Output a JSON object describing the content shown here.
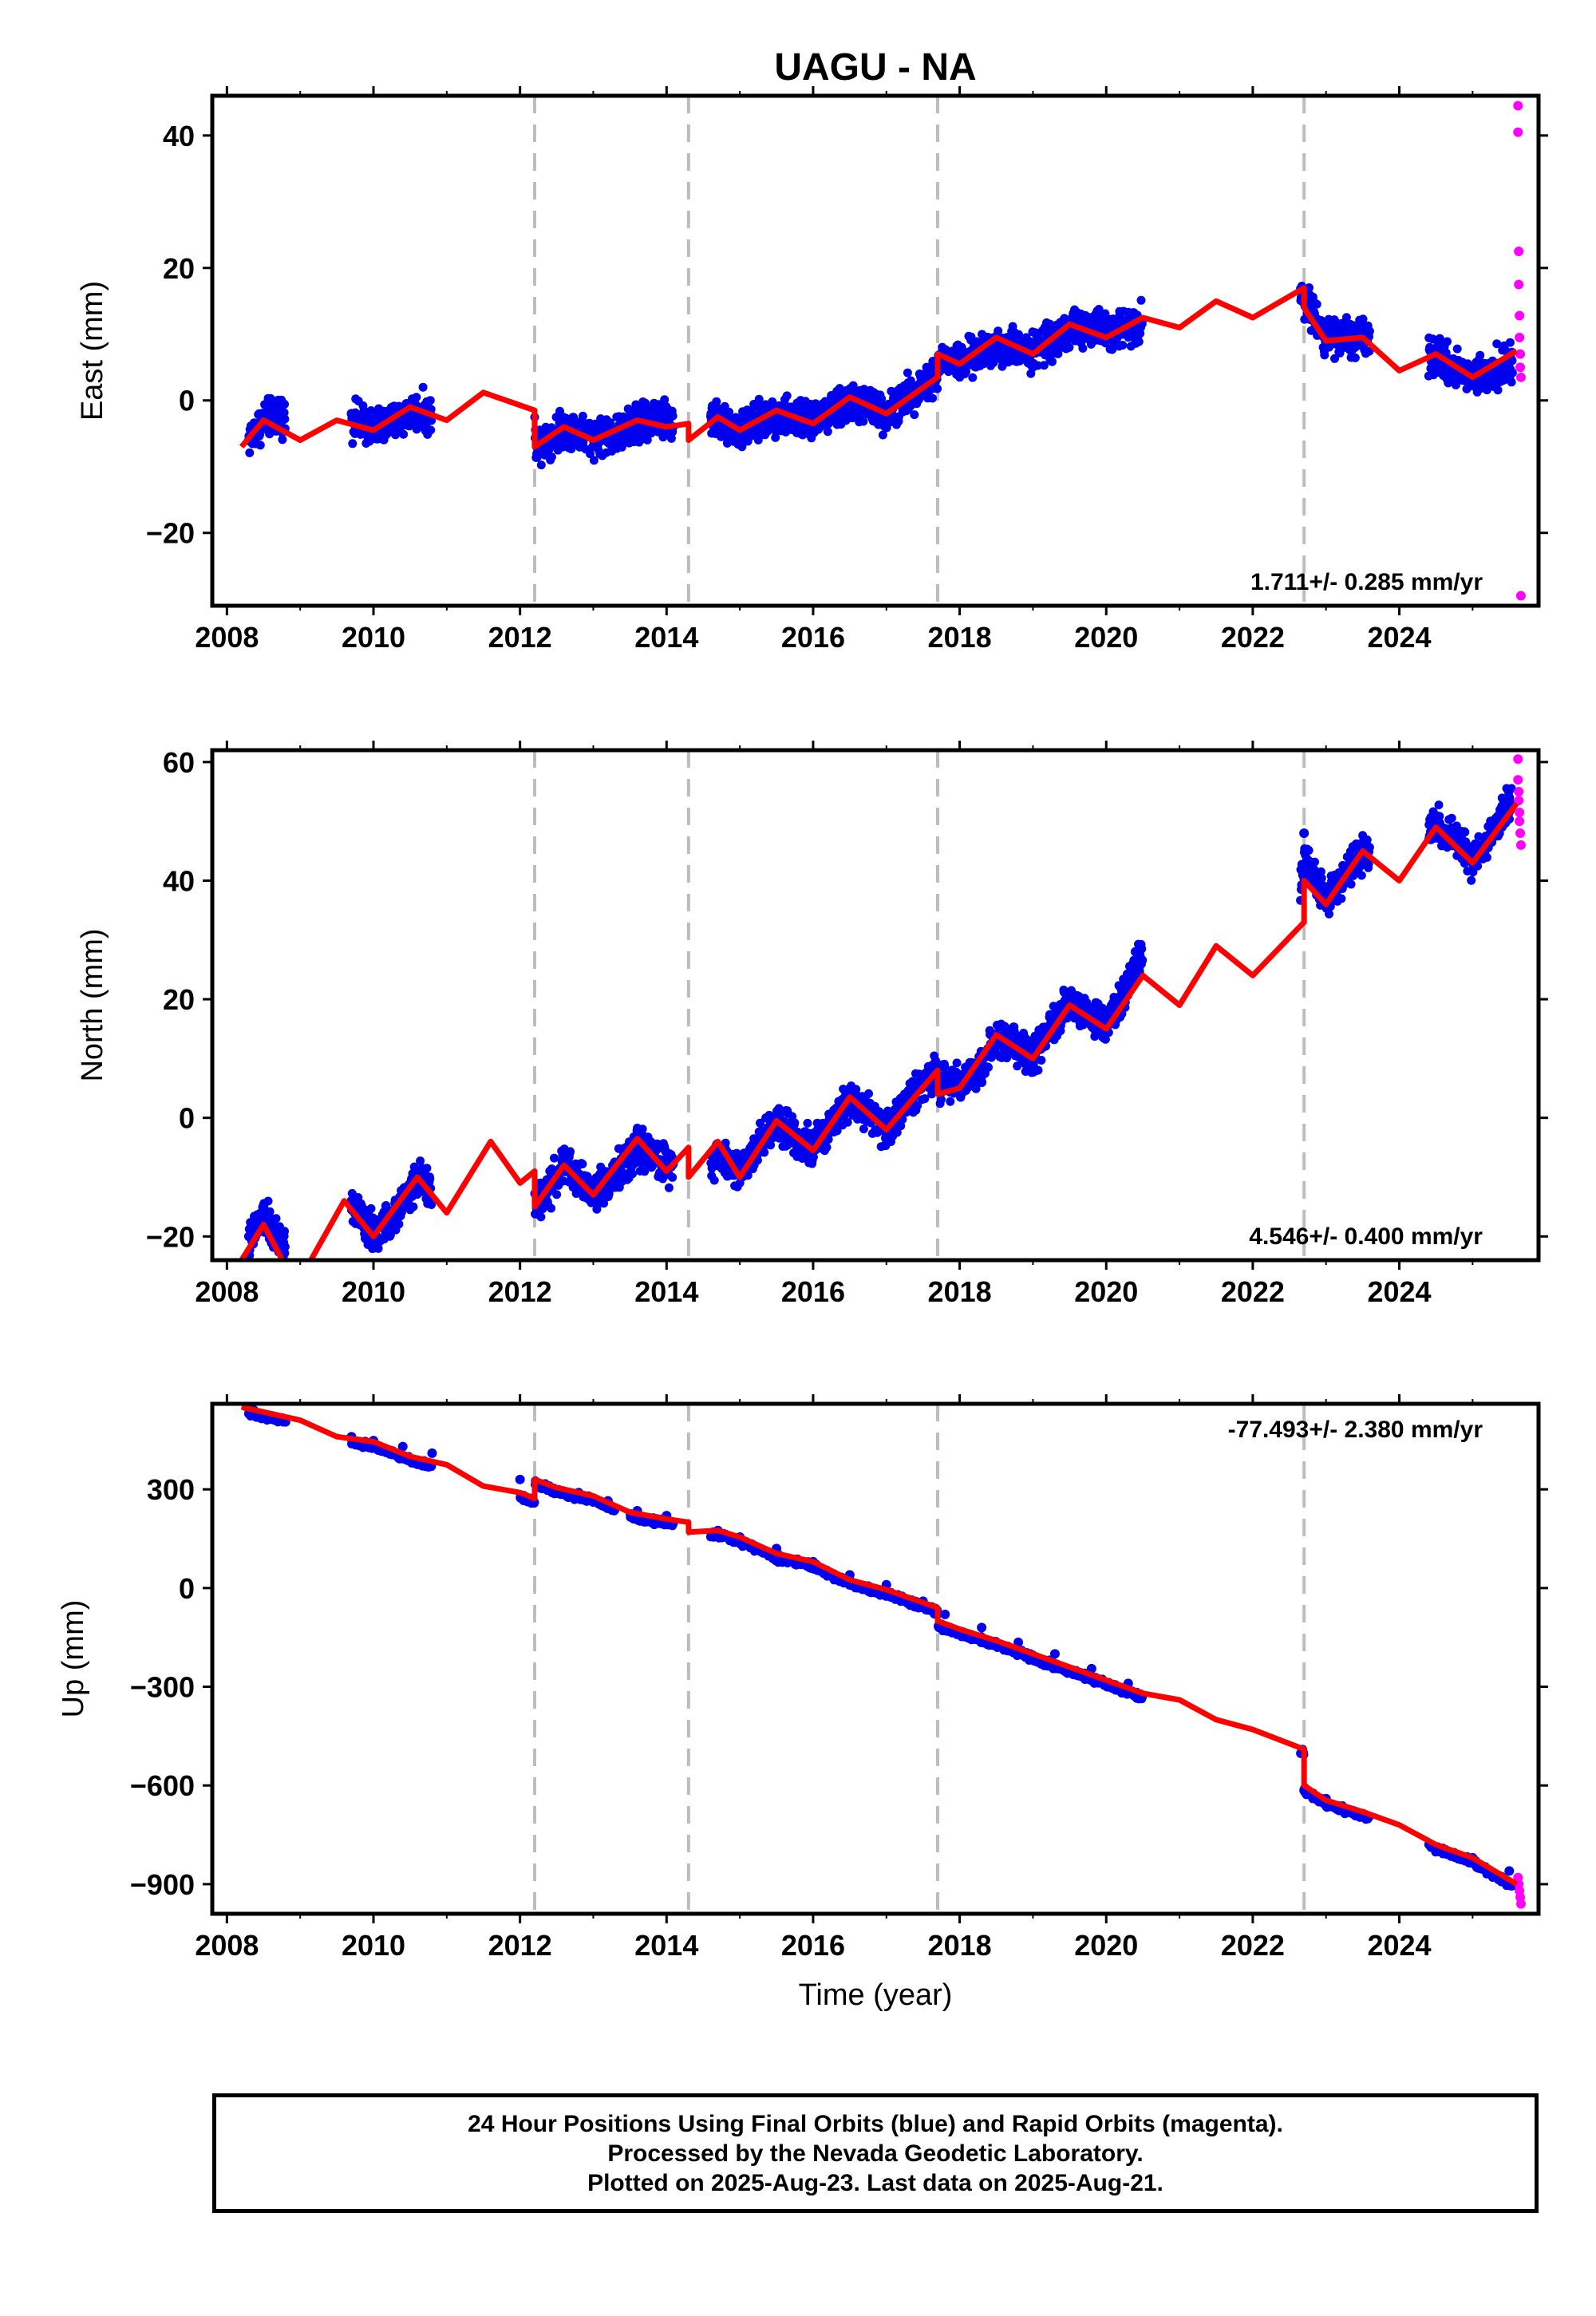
{
  "chart_data": [
    {
      "type": "scatter",
      "title": "UAGU - NA",
      "xlabel": "",
      "ylabel": "East (mm)",
      "xlim": [
        2007.8,
        2025.9
      ],
      "ylim": [
        -31,
        46
      ],
      "x_ticks": [
        2008,
        2010,
        2012,
        2014,
        2016,
        2018,
        2020,
        2022,
        2024
      ],
      "y_ticks": [
        -20,
        0,
        20,
        40
      ],
      "y_tick_labels": [
        "−20",
        "0",
        "20",
        "40"
      ],
      "rate_label": "1.711+/- 0.285 mm/yr",
      "rate_position": "bottom-right",
      "steps": [
        2012.2,
        2014.3,
        2017.7,
        2022.7
      ],
      "final_orbits_color": "#0000ee",
      "rapid_orbits_color": "#ff00ff",
      "model_color": "#ff0000",
      "final_segments": [
        [
          2008.3,
          2008.8
        ],
        [
          2009.7,
          2010.8
        ],
        [
          2012.2,
          2013.7
        ],
        [
          2013.5,
          2014.1
        ],
        [
          2014.6,
          2020.5
        ],
        [
          2022.65,
          2023.6
        ],
        [
          2024.4,
          2025.55
        ]
      ],
      "series": [
        {
          "name": "Final Orbits",
          "x": [
            2008.3,
            2008.5,
            2008.7,
            2009.7,
            2010.0,
            2010.3,
            2010.6,
            2012.3,
            2012.7,
            2013.0,
            2013.4,
            2013.8,
            2014.7,
            2015.0,
            2015.4,
            2015.8,
            2016.2,
            2016.6,
            2017.0,
            2017.5,
            2017.9,
            2018.3,
            2018.7,
            2019.0,
            2019.5,
            2019.9,
            2020.3,
            2022.7,
            2023.0,
            2023.4,
            2024.5,
            2024.9,
            2025.3
          ],
          "y": [
            -6,
            -3,
            0,
            -2,
            -4,
            -4,
            -2,
            -6,
            -4,
            -5,
            -6,
            -2,
            -3,
            -5,
            -3,
            -3,
            -2,
            -1,
            -2,
            3,
            6,
            6,
            8,
            8,
            10,
            12,
            11,
            16,
            11,
            9,
            6,
            4,
            4
          ]
        },
        {
          "name": "Rapid Orbits",
          "x": [
            2025.62,
            2025.62,
            2025.63,
            2025.63,
            2025.64,
            2025.64,
            2025.65,
            2025.65,
            2025.66,
            2025.66
          ],
          "y": [
            44.5,
            40.5,
            22.5,
            17.5,
            12.8,
            9.5,
            7,
            5,
            3.5,
            -29.5
          ]
        },
        {
          "name": "Model",
          "x": [
            2008.2,
            2008.5,
            2009.0,
            2009.5,
            2010.0,
            2010.5,
            2011.0,
            2011.5,
            2012.2,
            2012.2,
            2012.6,
            2013.0,
            2013.6,
            2014.0,
            2014.3,
            2014.3,
            2014.7,
            2015.0,
            2015.5,
            2016.0,
            2016.5,
            2017.0,
            2017.7,
            2017.7,
            2018.0,
            2018.5,
            2019.0,
            2019.5,
            2020.0,
            2020.5,
            2021.0,
            2021.5,
            2022.0,
            2022.7,
            2022.7,
            2023.0,
            2023.5,
            2024.0,
            2024.5,
            2025.0,
            2025.6
          ],
          "y": [
            -7,
            -3,
            -6,
            -3,
            -4.5,
            -1,
            -3,
            1.2,
            -1.5,
            -7,
            -4,
            -6,
            -3,
            -4,
            -3.5,
            -6,
            -2.5,
            -4.5,
            -1.5,
            -3.5,
            0.5,
            -2,
            3.5,
            7,
            5.5,
            9.5,
            7,
            11.5,
            9.5,
            12.5,
            11,
            15,
            12.5,
            17,
            14,
            9,
            9.5,
            4.5,
            7,
            3.5,
            7.5
          ]
        }
      ]
    },
    {
      "type": "scatter",
      "xlabel": "",
      "ylabel": "North (mm)",
      "xlim": [
        2007.8,
        2025.9
      ],
      "ylim": [
        -24,
        62
      ],
      "x_ticks": [
        2008,
        2010,
        2012,
        2014,
        2016,
        2018,
        2020,
        2022,
        2024
      ],
      "y_ticks": [
        -20,
        0,
        20,
        40,
        60
      ],
      "y_tick_labels": [
        "−20",
        "0",
        "20",
        "40",
        "60"
      ],
      "rate_label": "4.546+/- 0.400 mm/yr",
      "rate_position": "bottom-right",
      "steps": [
        2012.2,
        2014.3,
        2017.7,
        2022.7
      ],
      "final_orbits_color": "#0000ee",
      "rapid_orbits_color": "#ff00ff",
      "model_color": "#ff0000",
      "final_segments": [
        [
          2008.3,
          2008.8
        ],
        [
          2009.7,
          2010.8
        ],
        [
          2012.2,
          2013.7
        ],
        [
          2013.5,
          2014.1
        ],
        [
          2014.6,
          2020.5
        ],
        [
          2022.65,
          2023.6
        ],
        [
          2024.4,
          2025.55
        ]
      ],
      "series": [
        {
          "name": "Final Orbits",
          "x": [
            2008.3,
            2008.5,
            2008.7,
            2009.7,
            2010.0,
            2010.3,
            2010.6,
            2012.3,
            2012.6,
            2013.0,
            2013.4,
            2013.7,
            2014.7,
            2015.0,
            2015.5,
            2016.0,
            2016.5,
            2017.0,
            2017.5,
            2017.9,
            2018.3,
            2018.6,
            2019.0,
            2019.5,
            2020.0,
            2020.4,
            2022.7,
            2023.0,
            2023.5,
            2024.5,
            2025.0,
            2025.5
          ],
          "y": [
            -20,
            -15,
            -19,
            -14,
            -20,
            -17,
            -11,
            -14,
            -8,
            -12,
            -10,
            -6,
            -8,
            -8,
            0,
            -5,
            4,
            -2,
            7,
            8,
            6,
            14,
            10,
            20,
            16,
            28,
            48,
            38,
            44,
            50,
            44,
            54
          ]
        },
        {
          "name": "Rapid Orbits",
          "x": [
            2025.62,
            2025.62,
            2025.63,
            2025.63,
            2025.64,
            2025.64,
            2025.65,
            2025.66
          ],
          "y": [
            60.5,
            57,
            55,
            53.5,
            51.5,
            50,
            48,
            46
          ]
        },
        {
          "name": "Model",
          "x": [
            2008.2,
            2008.5,
            2008.8,
            2009.1,
            2009.6,
            2010.0,
            2010.6,
            2011.0,
            2011.6,
            2012.0,
            2012.2,
            2012.2,
            2012.6,
            2013.0,
            2013.6,
            2014.0,
            2014.3,
            2014.3,
            2014.7,
            2015.0,
            2015.5,
            2016.0,
            2016.5,
            2017.0,
            2017.7,
            2017.7,
            2018.0,
            2018.5,
            2019.0,
            2019.5,
            2020.0,
            2020.5,
            2021.0,
            2021.5,
            2022.0,
            2022.7,
            2022.7,
            2023.0,
            2023.5,
            2024.0,
            2024.5,
            2025.0,
            2025.6
          ],
          "y": [
            -24,
            -18,
            -25,
            -25,
            -14,
            -20,
            -10,
            -16,
            -4,
            -11,
            -9,
            -15,
            -8,
            -13,
            -3.5,
            -9,
            -5,
            -10,
            -4,
            -10,
            -0.5,
            -5.5,
            3.5,
            -2,
            8,
            4,
            5,
            14,
            10,
            19,
            15,
            24,
            19,
            29,
            24,
            33,
            40,
            36,
            45,
            40,
            49,
            43,
            53
          ]
        }
      ]
    },
    {
      "type": "scatter",
      "xlabel": "Time (year)",
      "ylabel": "Up (mm)",
      "xlim": [
        2007.8,
        2025.9
      ],
      "ylim": [
        -990,
        560
      ],
      "x_ticks": [
        2008,
        2010,
        2012,
        2014,
        2016,
        2018,
        2020,
        2022,
        2024
      ],
      "y_ticks": [
        -900,
        -600,
        -300,
        0,
        300
      ],
      "y_tick_labels": [
        "−900",
        "−600",
        "−300",
        "0",
        "300"
      ],
      "rate_label": "-77.493+/- 2.380 mm/yr",
      "rate_position": "top-right",
      "steps": [
        2012.2,
        2014.3,
        2017.7,
        2022.7
      ],
      "final_orbits_color": "#0000ee",
      "rapid_orbits_color": "#ff00ff",
      "model_color": "#ff0000",
      "final_segments": [
        [
          2008.3,
          2008.8
        ],
        [
          2009.7,
          2010.8
        ],
        [
          2012.0,
          2013.3
        ],
        [
          2013.5,
          2014.1
        ],
        [
          2014.6,
          2020.5
        ],
        [
          2022.65,
          2023.6
        ],
        [
          2024.4,
          2025.55
        ]
      ],
      "series": [
        {
          "name": "Final Orbits",
          "x": [
            2008.3,
            2008.6,
            2008.8,
            2009.7,
            2010.0,
            2010.4,
            2010.8,
            2012.0,
            2012.4,
            2012.8,
            2013.2,
            2013.6,
            2014.0,
            2014.7,
            2015.0,
            2015.5,
            2016.0,
            2016.5,
            2017.0,
            2017.5,
            2017.8,
            2018.3,
            2018.8,
            2019.3,
            2019.8,
            2020.3,
            2022.7,
            2023.0,
            2023.5,
            2024.5,
            2025.0,
            2025.5
          ],
          "y": [
            530,
            515,
            505,
            460,
            448,
            430,
            410,
            330,
            310,
            290,
            265,
            235,
            220,
            175,
            155,
            120,
            80,
            40,
            10,
            -40,
            -80,
            -120,
            -165,
            -200,
            -245,
            -290,
            -615,
            -640,
            -695,
            -790,
            -820,
            -860
          ]
        },
        {
          "name": "Rapid Orbits",
          "x": [
            2025.62,
            2025.63,
            2025.64,
            2025.65,
            2025.66
          ],
          "y": [
            -880,
            -900,
            -920,
            -940,
            -960
          ]
        },
        {
          "name": "Model",
          "x": [
            2008.2,
            2008.5,
            2009.0,
            2009.5,
            2010.0,
            2010.5,
            2011.0,
            2011.5,
            2012.0,
            2012.2,
            2012.2,
            2012.5,
            2013.0,
            2013.5,
            2014.0,
            2014.3,
            2014.3,
            2014.7,
            2015.0,
            2015.5,
            2016.0,
            2016.5,
            2017.0,
            2017.7,
            2017.7,
            2018.0,
            2018.5,
            2019.0,
            2019.5,
            2020.0,
            2020.5,
            2021.0,
            2021.5,
            2022.0,
            2022.7,
            2022.7,
            2023.0,
            2023.5,
            2024.0,
            2024.5,
            2025.0,
            2025.6
          ],
          "y": [
            550,
            535,
            510,
            460,
            445,
            400,
            375,
            310,
            290,
            272,
            330,
            305,
            280,
            230,
            210,
            200,
            170,
            175,
            155,
            105,
            80,
            25,
            -5,
            -60,
            -100,
            -125,
            -160,
            -200,
            -240,
            -280,
            -320,
            -340,
            -400,
            -430,
            -490,
            -600,
            -645,
            -680,
            -720,
            -780,
            -820,
            -900
          ]
        }
      ]
    }
  ],
  "footer": {
    "line1": "24 Hour Positions Using Final Orbits (blue) and Rapid Orbits (magenta).",
    "line2": "Processed by the Nevada Geodetic Laboratory.",
    "line3": "Plotted on 2025-Aug-23. Last data on 2025-Aug-21."
  }
}
